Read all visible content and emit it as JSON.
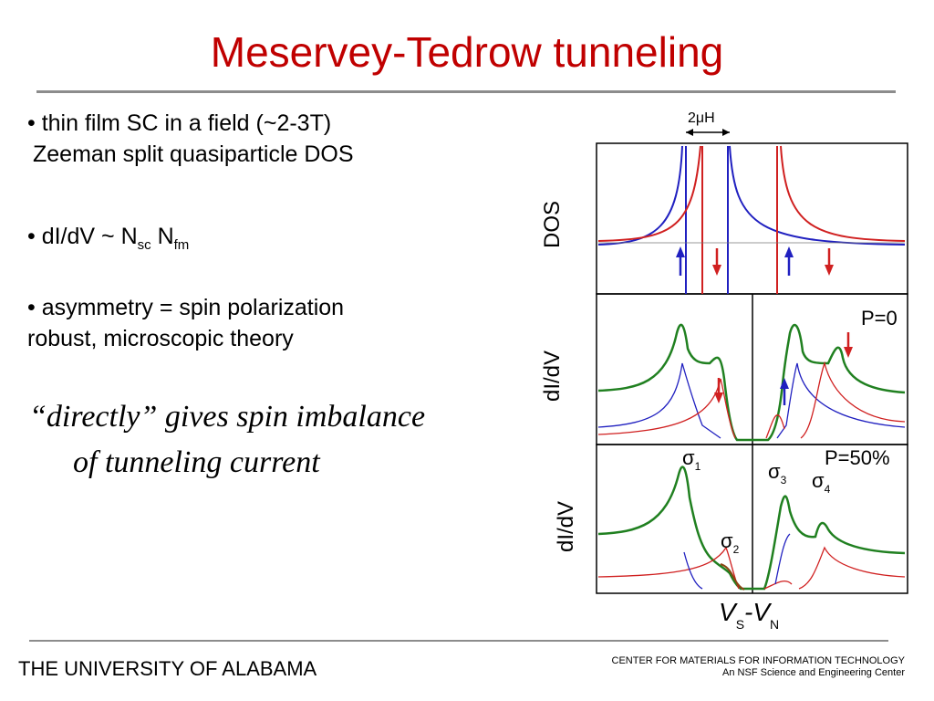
{
  "slide": {
    "title": "Meservey-Tedrow tunneling",
    "bullets": {
      "b1_line1": "• thin film SC in a field (~2-3T)",
      "b1_line2": "Zeeman split quasiparticle DOS",
      "b2_prefix": "• dI/dV ~ N",
      "b2_sub1": "sc",
      "b2_mid": " N",
      "b2_sub2": "fm",
      "b3_line1": "• asymmetry = spin polarization",
      "b3_line2": "robust, microscopic theory"
    },
    "italic_line1": "“directly” gives spin imbalance",
    "italic_line2": "of tunneling current"
  },
  "figure": {
    "top_label": "2μH",
    "panel_labels": {
      "dos": "DOS",
      "didv1": "dI/dV",
      "didv2": "dI/dV"
    },
    "p0_label": "P=0",
    "p50_label": "P=50%",
    "sigma": {
      "s1": "σ",
      "s1_sub": "1",
      "s2": "σ",
      "s2_sub": "2",
      "s3": "σ",
      "s3_sub": "3",
      "s4": "σ",
      "s4_sub": "4"
    },
    "xaxis": {
      "v": "V",
      "s": "S",
      "dash": "-V",
      "n": "N"
    },
    "colors": {
      "blue": "#2020c0",
      "red": "#d02020",
      "green": "#208020",
      "brown": "#8b4513"
    }
  },
  "footer": {
    "left": "THE UNIVERSITY OF ALABAMA",
    "right_line1": "CENTER FOR MATERIALS FOR INFORMATION TECHNOLOGY",
    "right_line2": "An NSF Science and Engineering Center"
  }
}
